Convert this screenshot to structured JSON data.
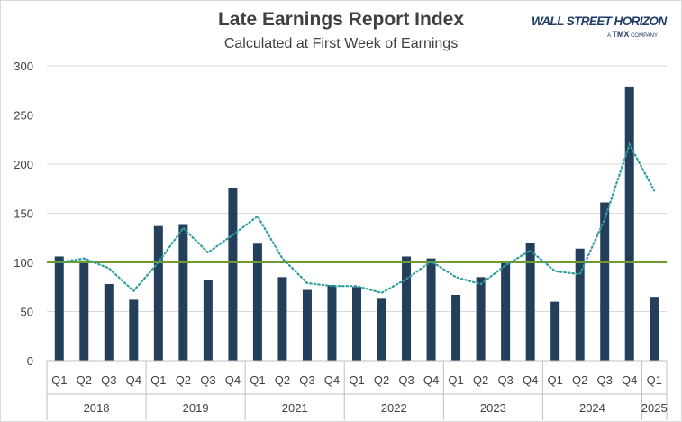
{
  "header": {
    "title": "Late Earnings Report Index",
    "subtitle": "Calculated at First Week of Earnings"
  },
  "logo": {
    "name": "WALL STREET HORIZON",
    "prefix": "A",
    "tmx": "TMX",
    "company": "COMPANY"
  },
  "chart_data": {
    "type": "bar",
    "title": "Late Earnings Report Index",
    "subtitle": "Calculated at First Week of Earnings",
    "xlabel": "",
    "ylabel": "",
    "ylim": [
      0,
      300
    ],
    "yticks": [
      0,
      50,
      100,
      150,
      200,
      250,
      300
    ],
    "grid": true,
    "legend": "none",
    "categories": [
      "Q1",
      "Q2",
      "Q3",
      "Q4",
      "Q1",
      "Q2",
      "Q3",
      "Q4",
      "Q1",
      "Q2",
      "Q3",
      "Q4",
      "Q1",
      "Q2",
      "Q3",
      "Q4",
      "Q1",
      "Q2",
      "Q3",
      "Q4",
      "Q1",
      "Q2",
      "Q3",
      "Q4",
      "Q1"
    ],
    "year_groups": [
      {
        "label": "2018",
        "count": 4
      },
      {
        "label": "2019",
        "count": 4
      },
      {
        "label": "2021",
        "count": 4
      },
      {
        "label": "2022",
        "count": 4
      },
      {
        "label": "2023",
        "count": 4
      },
      {
        "label": "2024",
        "count": 4
      },
      {
        "label": "2025",
        "count": 1
      }
    ],
    "values": [
      106,
      102,
      78,
      62,
      137,
      139,
      82,
      176,
      119,
      85,
      72,
      77,
      75,
      63,
      106,
      104,
      67,
      85,
      100,
      120,
      60,
      114,
      161,
      279,
      65
    ],
    "trend_values": [
      100,
      104,
      94,
      71,
      100,
      135,
      110,
      128,
      147,
      104,
      79,
      76,
      76,
      69,
      83,
      101,
      85,
      78,
      97,
      112,
      91,
      88,
      144,
      220,
      173
    ],
    "reference_line": 100,
    "colors": {
      "bar": "#243f5c",
      "trend": "#2e9e9e",
      "reference": "#6e9a2e",
      "grid": "#d9d9d9",
      "axis_text": "#404040"
    }
  }
}
